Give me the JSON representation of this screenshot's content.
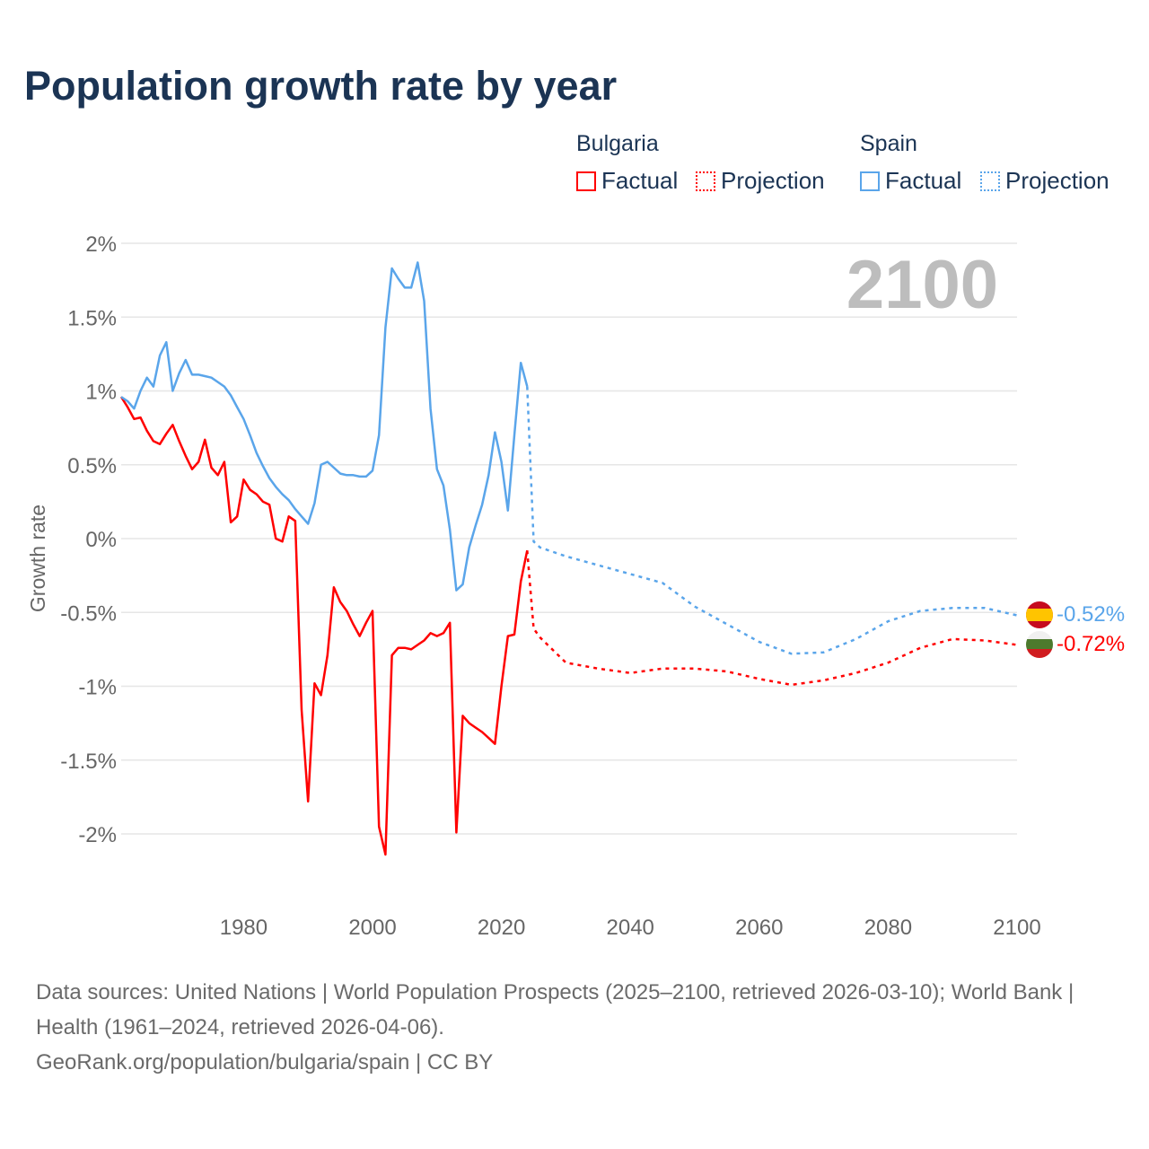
{
  "title": "Population growth rate by year",
  "legend": {
    "groups": [
      {
        "country": "Bulgaria",
        "items": [
          "Factual",
          "Projection"
        ],
        "color": "#ff0000"
      },
      {
        "country": "Spain",
        "items": [
          "Factual",
          "Projection"
        ],
        "color": "#5aa5ea"
      }
    ]
  },
  "year_display": "2100",
  "end_labels": {
    "spain": "-0.52%",
    "bulgaria": "-0.72%"
  },
  "footer": {
    "sources": "Data sources: United Nations | World Population Prospects (2025–2100, retrieved 2026-03-10); World Bank | Health (1961–2024, retrieved 2026-04-06).",
    "link": "GeoRank.org/population/bulgaria/spain | CC BY"
  },
  "chart_data": {
    "type": "line",
    "title": "Population growth rate by year",
    "xlabel": "",
    "ylabel": "Growth rate",
    "xlim": [
      1961,
      2100
    ],
    "ylim": [
      -2.4,
      2.0
    ],
    "x_ticks": [
      1980,
      2000,
      2020,
      2040,
      2060,
      2080,
      2100
    ],
    "y_ticks": [
      2,
      1.5,
      1,
      0.5,
      0,
      -0.5,
      -1,
      -1.5,
      -2
    ],
    "y_tick_labels": [
      "2%",
      "1.5%",
      "1%",
      "0.5%",
      "0%",
      "-0.5%",
      "-1%",
      "-1.5%",
      "-2%"
    ],
    "grid": true,
    "legend_position": "top-right",
    "series": [
      {
        "name": "Bulgaria Factual",
        "color": "#ff0000",
        "dashed": false,
        "start": 1961,
        "values": [
          0.96,
          0.89,
          0.81,
          0.82,
          0.73,
          0.66,
          0.64,
          0.71,
          0.77,
          0.66,
          0.56,
          0.47,
          0.52,
          0.67,
          0.48,
          0.43,
          0.52,
          0.11,
          0.15,
          0.4,
          0.33,
          0.3,
          0.25,
          0.23,
          0.0,
          -0.02,
          0.15,
          0.12,
          -1.16,
          -1.78,
          -0.98,
          -1.06,
          -0.79,
          -0.33,
          -0.43,
          -0.49,
          -0.58,
          -0.66,
          -0.57,
          -0.49,
          -1.95,
          -2.14,
          -0.79,
          -0.74,
          -0.74,
          -0.75,
          -0.72,
          -0.69,
          -0.64,
          -0.66,
          -0.64,
          -0.57,
          -1.99,
          -1.2,
          -1.25,
          -1.28,
          -1.31,
          -1.35,
          -1.39,
          -1.0,
          -0.66,
          -0.65,
          -0.29,
          -0.08
        ]
      },
      {
        "name": "Spain Factual",
        "color": "#5aa5ea",
        "dashed": false,
        "start": 1961,
        "values": [
          0.96,
          0.93,
          0.88,
          1.0,
          1.09,
          1.03,
          1.24,
          1.33,
          1.0,
          1.12,
          1.21,
          1.11,
          1.11,
          1.1,
          1.09,
          1.06,
          1.03,
          0.97,
          0.89,
          0.81,
          0.7,
          0.58,
          0.49,
          0.41,
          0.35,
          0.3,
          0.26,
          0.2,
          0.15,
          0.1,
          0.24,
          0.5,
          0.52,
          0.48,
          0.44,
          0.43,
          0.43,
          0.42,
          0.42,
          0.46,
          0.7,
          1.43,
          1.83,
          1.76,
          1.7,
          1.7,
          1.87,
          1.61,
          0.88,
          0.47,
          0.36,
          0.06,
          -0.35,
          -0.31,
          -0.06,
          0.09,
          0.23,
          0.43,
          0.72,
          0.52,
          0.19,
          0.7,
          1.19,
          1.03
        ]
      },
      {
        "name": "Bulgaria Projection",
        "color": "#ff0000",
        "dashed": true,
        "x": [
          2024,
          2025,
          2026,
          2030,
          2035,
          2040,
          2045,
          2050,
          2055,
          2060,
          2065,
          2070,
          2075,
          2080,
          2085,
          2090,
          2095,
          2100
        ],
        "values": [
          -0.08,
          -0.61,
          -0.67,
          -0.84,
          -0.88,
          -0.91,
          -0.88,
          -0.88,
          -0.9,
          -0.95,
          -0.99,
          -0.96,
          -0.91,
          -0.84,
          -0.74,
          -0.68,
          -0.69,
          -0.72
        ]
      },
      {
        "name": "Spain Projection",
        "color": "#5aa5ea",
        "dashed": true,
        "x": [
          2024,
          2025,
          2026,
          2030,
          2035,
          2040,
          2045,
          2050,
          2055,
          2060,
          2065,
          2070,
          2075,
          2080,
          2085,
          2090,
          2095,
          2100
        ],
        "values": [
          1.03,
          -0.02,
          -0.06,
          -0.12,
          -0.18,
          -0.24,
          -0.3,
          -0.46,
          -0.58,
          -0.7,
          -0.78,
          -0.77,
          -0.68,
          -0.56,
          -0.49,
          -0.47,
          -0.47,
          -0.52
        ]
      }
    ]
  }
}
